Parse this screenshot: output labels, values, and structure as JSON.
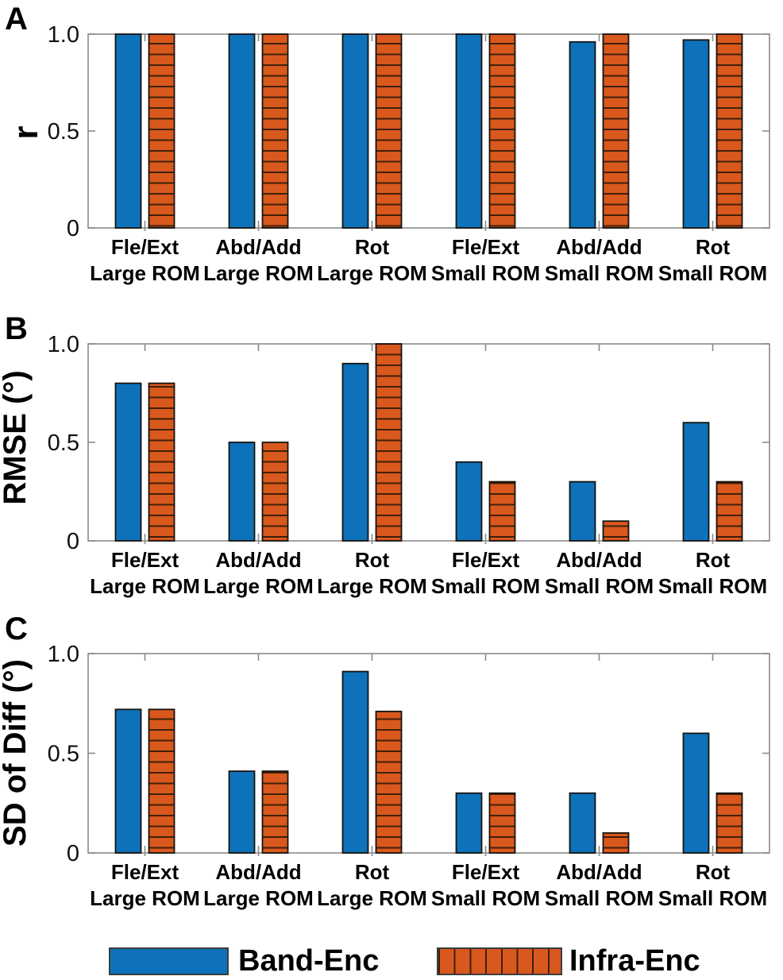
{
  "colors": {
    "band_enc": "#0d72b9",
    "infra_enc": "#d9581d",
    "bar_edge": "#16130f",
    "hatch_line": "#40200a",
    "axis_frame": "#8a8a8a",
    "tick_text": "#111111",
    "label_text": "#000000"
  },
  "panels": [
    {
      "letter": "A"
    },
    {
      "letter": "B"
    },
    {
      "letter": "C"
    }
  ],
  "categories": [
    {
      "line1": "Fle/Ext",
      "line2": "Large ROM"
    },
    {
      "line1": "Abd/Add",
      "line2": "Large ROM"
    },
    {
      "line1": "Rot",
      "line2": "Large ROM"
    },
    {
      "line1": "Fle/Ext",
      "line2": "Small ROM"
    },
    {
      "line1": "Abd/Add",
      "line2": "Small ROM"
    },
    {
      "line1": "Rot",
      "line2": "Small ROM"
    }
  ],
  "legend": {
    "items": [
      {
        "label": "Band-Enc",
        "pattern": "solid",
        "color_key": "band_enc"
      },
      {
        "label": "Infra-Enc",
        "pattern": "vertical-hatched",
        "color_key": "infra_enc"
      }
    ]
  },
  "chart_data": [
    {
      "type": "bar",
      "panel": "A",
      "title": "",
      "xlabel": "",
      "ylabel": "r",
      "ylim": [
        0,
        1.0
      ],
      "yticks": [
        0,
        0.5,
        1.0
      ],
      "ytick_labels": [
        "0",
        "0.5",
        "1.0"
      ],
      "grid": false,
      "legend_position": "below-figure",
      "categories": [
        "Fle/Ext Large ROM",
        "Abd/Add Large ROM",
        "Rot Large ROM",
        "Fle/Ext Small ROM",
        "Abd/Add Small ROM",
        "Rot Small ROM"
      ],
      "series": [
        {
          "name": "Band-Enc",
          "values": [
            1.0,
            1.0,
            1.0,
            1.0,
            0.96,
            0.97
          ]
        },
        {
          "name": "Infra-Enc",
          "values": [
            1.0,
            1.0,
            1.0,
            1.0,
            1.0,
            1.0
          ]
        }
      ]
    },
    {
      "type": "bar",
      "panel": "B",
      "title": "",
      "xlabel": "",
      "ylabel": "RMSE (°)",
      "ylim": [
        0,
        1.0
      ],
      "yticks": [
        0,
        0.5,
        1.0
      ],
      "ytick_labels": [
        "0",
        "0.5",
        "1.0"
      ],
      "grid": false,
      "legend_position": "below-figure",
      "categories": [
        "Fle/Ext Large ROM",
        "Abd/Add Large ROM",
        "Rot Large ROM",
        "Fle/Ext Small ROM",
        "Abd/Add Small ROM",
        "Rot Small ROM"
      ],
      "series": [
        {
          "name": "Band-Enc",
          "values": [
            0.8,
            0.5,
            0.9,
            0.4,
            0.3,
            0.6
          ]
        },
        {
          "name": "Infra-Enc",
          "values": [
            0.8,
            0.5,
            1.0,
            0.3,
            0.1,
            0.3
          ]
        }
      ]
    },
    {
      "type": "bar",
      "panel": "C",
      "title": "",
      "xlabel": "",
      "ylabel": "SD of Diff (°)",
      "ylim": [
        0,
        1.0
      ],
      "yticks": [
        0,
        0.5,
        1.0
      ],
      "ytick_labels": [
        "0",
        "0.5",
        "1.0"
      ],
      "grid": false,
      "legend_position": "below-figure",
      "categories": [
        "Fle/Ext Large ROM",
        "Abd/Add Large ROM",
        "Rot Large ROM",
        "Fle/Ext Small ROM",
        "Abd/Add Small ROM",
        "Rot Small ROM"
      ],
      "series": [
        {
          "name": "Band-Enc",
          "values": [
            0.72,
            0.41,
            0.91,
            0.3,
            0.3,
            0.6
          ]
        },
        {
          "name": "Infra-Enc",
          "values": [
            0.72,
            0.41,
            0.71,
            0.3,
            0.1,
            0.3
          ]
        }
      ]
    }
  ]
}
